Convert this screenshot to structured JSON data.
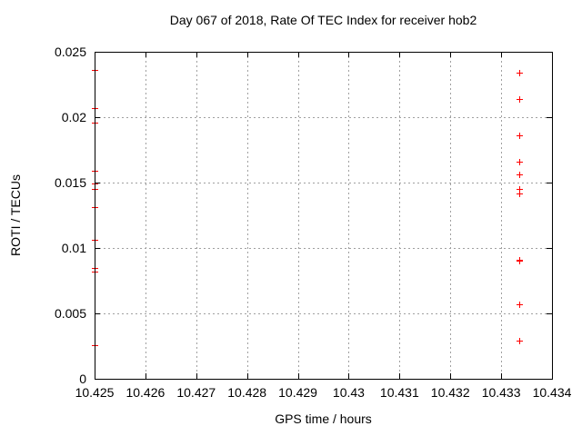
{
  "chart_data": {
    "type": "scatter",
    "title": "Day 067 of 2018, Rate Of TEC Index for receiver hob2",
    "xlabel": "GPS time / hours",
    "ylabel": "ROTI / TECUs",
    "xlim": [
      10.425,
      10.434
    ],
    "ylim": [
      0,
      0.025
    ],
    "xticks": {
      "values": [
        10.425,
        10.426,
        10.427,
        10.428,
        10.429,
        10.43,
        10.431,
        10.432,
        10.433,
        10.434
      ],
      "labels": [
        "10.425",
        "10.426",
        "10.427",
        "10.428",
        "10.429",
        "10.43",
        "10.431",
        "10.432",
        "10.433",
        "10.434"
      ]
    },
    "yticks": {
      "values": [
        0,
        0.005,
        0.01,
        0.015,
        0.02,
        0.025
      ],
      "labels": [
        "0",
        "0.005",
        "0.01",
        "0.015",
        "0.02",
        "0.025"
      ]
    },
    "grid": "dotted",
    "legend_position": "none",
    "colors": {
      "marker": "#ff0000",
      "grid": "#a0a0a0",
      "axis": "#000000",
      "background": "#ffffff"
    },
    "series": [
      {
        "name": "ROTI",
        "marker": "plus",
        "color": "#ff0000",
        "points": [
          [
            10.425,
            0.0236
          ],
          [
            10.425,
            0.0207
          ],
          [
            10.425,
            0.0196
          ],
          [
            10.425,
            0.0159
          ],
          [
            10.425,
            0.0149
          ],
          [
            10.425,
            0.0145
          ],
          [
            10.425,
            0.0131
          ],
          [
            10.425,
            0.0106
          ],
          [
            10.425,
            0.0085
          ],
          [
            10.425,
            0.0082
          ],
          [
            10.425,
            0.0026
          ],
          [
            10.43335,
            0.0234
          ],
          [
            10.43335,
            0.0214
          ],
          [
            10.43335,
            0.0186
          ],
          [
            10.43335,
            0.0166
          ],
          [
            10.43335,
            0.0156
          ],
          [
            10.43335,
            0.0145
          ],
          [
            10.43335,
            0.0142
          ],
          [
            10.43335,
            0.0091
          ],
          [
            10.43335,
            0.009
          ],
          [
            10.43335,
            0.0057
          ],
          [
            10.43335,
            0.0029
          ]
        ]
      }
    ]
  }
}
